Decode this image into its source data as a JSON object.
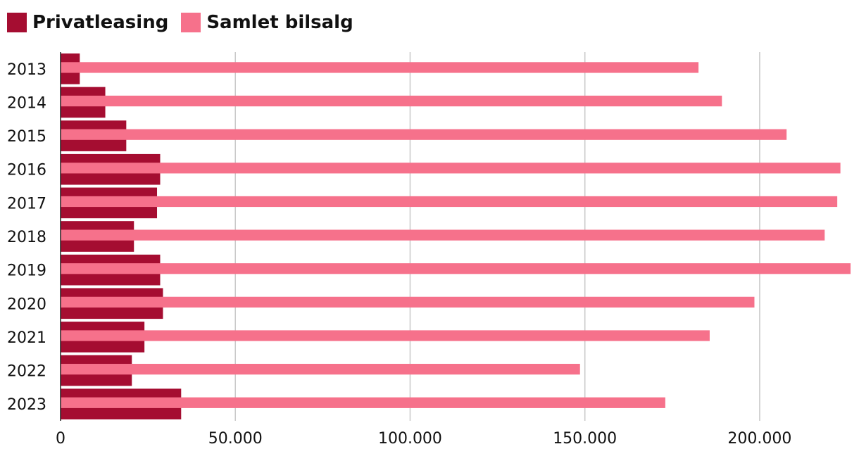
{
  "chart_data": {
    "type": "bar",
    "orientation": "horizontal",
    "categories": [
      "2013",
      "2014",
      "2015",
      "2016",
      "2017",
      "2018",
      "2019",
      "2020",
      "2021",
      "2022",
      "2023"
    ],
    "series": [
      {
        "name": "Privatleasing",
        "color": "#a50d31",
        "values": [
          5500,
          12800,
          18800,
          28500,
          27600,
          21000,
          28500,
          29300,
          24000,
          20400,
          34500
        ]
      },
      {
        "name": "Samlet bilsalg",
        "color": "#f6718b",
        "values": [
          182500,
          189200,
          207700,
          223100,
          222200,
          218600,
          226000,
          198500,
          185700,
          148600,
          173000
        ]
      }
    ],
    "xlim": [
      0,
      226000
    ],
    "xticks": [
      0,
      50000,
      100000,
      150000,
      200000
    ],
    "xtick_labels": [
      "0",
      "50.000",
      "100.000",
      "150.000",
      "200.000"
    ],
    "grid": "vertical",
    "legend": "top-left"
  }
}
